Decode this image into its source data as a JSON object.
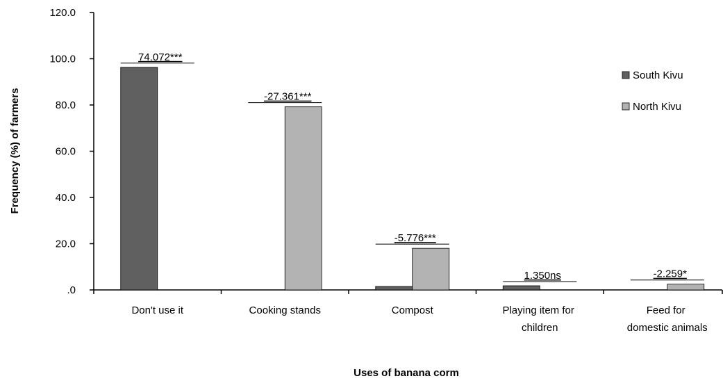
{
  "chart_data": {
    "type": "bar",
    "ylabel": "Frequency (%) of farmers",
    "xlabel": "Uses of banana corm",
    "categories": [
      "Don't use it",
      "Cooking stands",
      "Compost",
      "Playing item for children",
      "Feed for domestic animals"
    ],
    "series": [
      {
        "name": "South Kivu",
        "color": "#606060",
        "values": [
          96.3,
          0,
          1.5,
          1.8,
          0
        ]
      },
      {
        "name": "North Kivu",
        "color": "#b3b3b3",
        "values": [
          0,
          79.2,
          18,
          0,
          2.5
        ]
      }
    ],
    "annotations": [
      "74.072***",
      "-27.361***",
      "-5.776***",
      "1.350ns",
      "-2.259*"
    ],
    "ylim": [
      0,
      120
    ],
    "yticks": [
      {
        "value": 0,
        "label": ".0"
      },
      {
        "value": 20,
        "label": "20.0"
      },
      {
        "value": 40,
        "label": "40.0"
      },
      {
        "value": 60,
        "label": "60.0"
      },
      {
        "value": 80,
        "label": "80.0"
      },
      {
        "value": 100,
        "label": "100.0"
      },
      {
        "value": 120,
        "label": "120.0"
      }
    ],
    "grid": false,
    "legend": "right"
  }
}
